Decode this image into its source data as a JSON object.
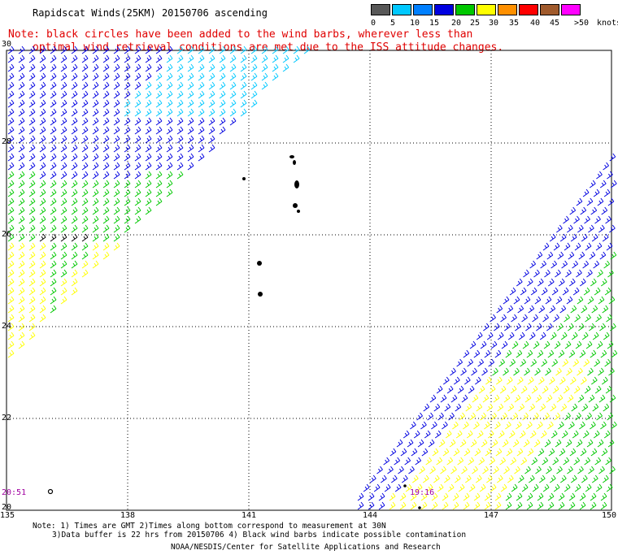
{
  "title": "Rapidscat Winds(25KM) 20150706 ascending",
  "notice": {
    "line1": "Note: black circles have been added to the wind barbs, wherever less than",
    "line2": "optimal wind retrieval conditions are met due to the ISS attitude changes."
  },
  "legend": {
    "unit": "knots",
    "labels": [
      "0",
      "5",
      "10",
      "15",
      "20",
      "25",
      "30",
      "35",
      "40",
      "45",
      ">50"
    ],
    "colors": [
      "#585858",
      "#00c8ff",
      "#0080ff",
      "#0000e0",
      "#00c800",
      "#ffff00",
      "#ff9000",
      "#ff0000",
      "#a05a2c",
      "#ff00ff",
      "#5a00a0"
    ]
  },
  "axes": {
    "lon_ticks": [
      "135",
      "138",
      "141",
      "144",
      "147",
      "150"
    ],
    "lat_ticks": [
      "30",
      "28",
      "26",
      "24",
      "22",
      "20"
    ]
  },
  "times": {
    "left": "20:51",
    "right": "19:16"
  },
  "footer": {
    "line1": "Note: 1) Times are GMT 2)Times along bottom correspond to measurement at 30N",
    "line2": "3)Data buffer is 22 hrs from 20150706 4) Black wind barbs indicate possible contamination",
    "credit": "NOAA/NESDIS/Center for Satellite Applications and Research"
  },
  "colors": {
    "calm": "#00c8ff",
    "light": "#0000e0",
    "moderate": "#00c800",
    "fresh": "#ffff00",
    "contaminated": "#000000"
  }
}
